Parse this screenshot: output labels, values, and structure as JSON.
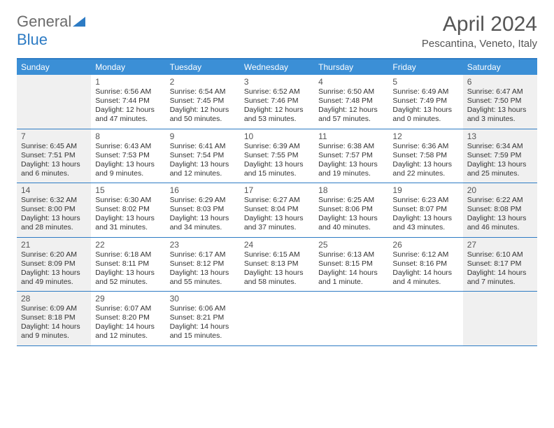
{
  "logo": {
    "text_general": "General",
    "text_blue": "Blue"
  },
  "header": {
    "month_title": "April 2024",
    "location": "Pescantina, Veneto, Italy"
  },
  "colors": {
    "header_bg": "#3b8fd6",
    "border": "#2d7bc4",
    "shaded_bg": "#f0f0f0",
    "text": "#333333",
    "title_text": "#555555"
  },
  "day_headers": [
    "Sunday",
    "Monday",
    "Tuesday",
    "Wednesday",
    "Thursday",
    "Friday",
    "Saturday"
  ],
  "weeks": [
    [
      {
        "day": "",
        "sunrise": "",
        "sunset": "",
        "daylight": "",
        "shaded": true
      },
      {
        "day": "1",
        "sunrise": "Sunrise: 6:56 AM",
        "sunset": "Sunset: 7:44 PM",
        "daylight": "Daylight: 12 hours and 47 minutes.",
        "shaded": false
      },
      {
        "day": "2",
        "sunrise": "Sunrise: 6:54 AM",
        "sunset": "Sunset: 7:45 PM",
        "daylight": "Daylight: 12 hours and 50 minutes.",
        "shaded": false
      },
      {
        "day": "3",
        "sunrise": "Sunrise: 6:52 AM",
        "sunset": "Sunset: 7:46 PM",
        "daylight": "Daylight: 12 hours and 53 minutes.",
        "shaded": false
      },
      {
        "day": "4",
        "sunrise": "Sunrise: 6:50 AM",
        "sunset": "Sunset: 7:48 PM",
        "daylight": "Daylight: 12 hours and 57 minutes.",
        "shaded": false
      },
      {
        "day": "5",
        "sunrise": "Sunrise: 6:49 AM",
        "sunset": "Sunset: 7:49 PM",
        "daylight": "Daylight: 13 hours and 0 minutes.",
        "shaded": false
      },
      {
        "day": "6",
        "sunrise": "Sunrise: 6:47 AM",
        "sunset": "Sunset: 7:50 PM",
        "daylight": "Daylight: 13 hours and 3 minutes.",
        "shaded": true
      }
    ],
    [
      {
        "day": "7",
        "sunrise": "Sunrise: 6:45 AM",
        "sunset": "Sunset: 7:51 PM",
        "daylight": "Daylight: 13 hours and 6 minutes.",
        "shaded": true
      },
      {
        "day": "8",
        "sunrise": "Sunrise: 6:43 AM",
        "sunset": "Sunset: 7:53 PM",
        "daylight": "Daylight: 13 hours and 9 minutes.",
        "shaded": false
      },
      {
        "day": "9",
        "sunrise": "Sunrise: 6:41 AM",
        "sunset": "Sunset: 7:54 PM",
        "daylight": "Daylight: 13 hours and 12 minutes.",
        "shaded": false
      },
      {
        "day": "10",
        "sunrise": "Sunrise: 6:39 AM",
        "sunset": "Sunset: 7:55 PM",
        "daylight": "Daylight: 13 hours and 15 minutes.",
        "shaded": false
      },
      {
        "day": "11",
        "sunrise": "Sunrise: 6:38 AM",
        "sunset": "Sunset: 7:57 PM",
        "daylight": "Daylight: 13 hours and 19 minutes.",
        "shaded": false
      },
      {
        "day": "12",
        "sunrise": "Sunrise: 6:36 AM",
        "sunset": "Sunset: 7:58 PM",
        "daylight": "Daylight: 13 hours and 22 minutes.",
        "shaded": false
      },
      {
        "day": "13",
        "sunrise": "Sunrise: 6:34 AM",
        "sunset": "Sunset: 7:59 PM",
        "daylight": "Daylight: 13 hours and 25 minutes.",
        "shaded": true
      }
    ],
    [
      {
        "day": "14",
        "sunrise": "Sunrise: 6:32 AM",
        "sunset": "Sunset: 8:00 PM",
        "daylight": "Daylight: 13 hours and 28 minutes.",
        "shaded": true
      },
      {
        "day": "15",
        "sunrise": "Sunrise: 6:30 AM",
        "sunset": "Sunset: 8:02 PM",
        "daylight": "Daylight: 13 hours and 31 minutes.",
        "shaded": false
      },
      {
        "day": "16",
        "sunrise": "Sunrise: 6:29 AM",
        "sunset": "Sunset: 8:03 PM",
        "daylight": "Daylight: 13 hours and 34 minutes.",
        "shaded": false
      },
      {
        "day": "17",
        "sunrise": "Sunrise: 6:27 AM",
        "sunset": "Sunset: 8:04 PM",
        "daylight": "Daylight: 13 hours and 37 minutes.",
        "shaded": false
      },
      {
        "day": "18",
        "sunrise": "Sunrise: 6:25 AM",
        "sunset": "Sunset: 8:06 PM",
        "daylight": "Daylight: 13 hours and 40 minutes.",
        "shaded": false
      },
      {
        "day": "19",
        "sunrise": "Sunrise: 6:23 AM",
        "sunset": "Sunset: 8:07 PM",
        "daylight": "Daylight: 13 hours and 43 minutes.",
        "shaded": false
      },
      {
        "day": "20",
        "sunrise": "Sunrise: 6:22 AM",
        "sunset": "Sunset: 8:08 PM",
        "daylight": "Daylight: 13 hours and 46 minutes.",
        "shaded": true
      }
    ],
    [
      {
        "day": "21",
        "sunrise": "Sunrise: 6:20 AM",
        "sunset": "Sunset: 8:09 PM",
        "daylight": "Daylight: 13 hours and 49 minutes.",
        "shaded": true
      },
      {
        "day": "22",
        "sunrise": "Sunrise: 6:18 AM",
        "sunset": "Sunset: 8:11 PM",
        "daylight": "Daylight: 13 hours and 52 minutes.",
        "shaded": false
      },
      {
        "day": "23",
        "sunrise": "Sunrise: 6:17 AM",
        "sunset": "Sunset: 8:12 PM",
        "daylight": "Daylight: 13 hours and 55 minutes.",
        "shaded": false
      },
      {
        "day": "24",
        "sunrise": "Sunrise: 6:15 AM",
        "sunset": "Sunset: 8:13 PM",
        "daylight": "Daylight: 13 hours and 58 minutes.",
        "shaded": false
      },
      {
        "day": "25",
        "sunrise": "Sunrise: 6:13 AM",
        "sunset": "Sunset: 8:15 PM",
        "daylight": "Daylight: 14 hours and 1 minute.",
        "shaded": false
      },
      {
        "day": "26",
        "sunrise": "Sunrise: 6:12 AM",
        "sunset": "Sunset: 8:16 PM",
        "daylight": "Daylight: 14 hours and 4 minutes.",
        "shaded": false
      },
      {
        "day": "27",
        "sunrise": "Sunrise: 6:10 AM",
        "sunset": "Sunset: 8:17 PM",
        "daylight": "Daylight: 14 hours and 7 minutes.",
        "shaded": true
      }
    ],
    [
      {
        "day": "28",
        "sunrise": "Sunrise: 6:09 AM",
        "sunset": "Sunset: 8:18 PM",
        "daylight": "Daylight: 14 hours and 9 minutes.",
        "shaded": true
      },
      {
        "day": "29",
        "sunrise": "Sunrise: 6:07 AM",
        "sunset": "Sunset: 8:20 PM",
        "daylight": "Daylight: 14 hours and 12 minutes.",
        "shaded": false
      },
      {
        "day": "30",
        "sunrise": "Sunrise: 6:06 AM",
        "sunset": "Sunset: 8:21 PM",
        "daylight": "Daylight: 14 hours and 15 minutes.",
        "shaded": false
      },
      {
        "day": "",
        "sunrise": "",
        "sunset": "",
        "daylight": "",
        "shaded": false
      },
      {
        "day": "",
        "sunrise": "",
        "sunset": "",
        "daylight": "",
        "shaded": false
      },
      {
        "day": "",
        "sunrise": "",
        "sunset": "",
        "daylight": "",
        "shaded": false
      },
      {
        "day": "",
        "sunrise": "",
        "sunset": "",
        "daylight": "",
        "shaded": true
      }
    ]
  ]
}
